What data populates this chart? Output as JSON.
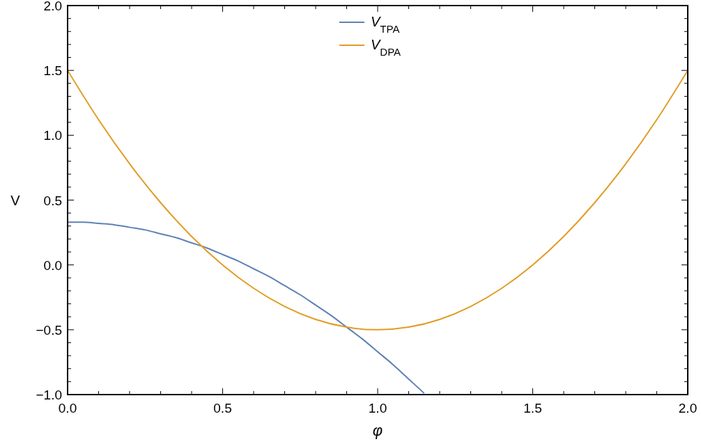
{
  "chart_data": {
    "type": "line",
    "xlabel": "φ",
    "ylabel": "V",
    "xlim": [
      0,
      2
    ],
    "ylim": [
      -1,
      2
    ],
    "xticks": [
      {
        "value": 0,
        "label": "0.0"
      },
      {
        "value": 0.5,
        "label": "0.5"
      },
      {
        "value": 1,
        "label": "1.0"
      },
      {
        "value": 1.5,
        "label": "1.5"
      },
      {
        "value": 2,
        "label": "2.0"
      }
    ],
    "yticks": [
      {
        "value": -1,
        "label": "−1.0"
      },
      {
        "value": -0.5,
        "label": "−0.5"
      },
      {
        "value": 0,
        "label": "0.0"
      },
      {
        "value": 0.5,
        "label": "0.5"
      },
      {
        "value": 1,
        "label": "1.0"
      },
      {
        "value": 1.5,
        "label": "1.5"
      },
      {
        "value": 2,
        "label": "2.0"
      }
    ],
    "grid": false,
    "legend": "top",
    "marker": "none",
    "line_style": "solid",
    "series": [
      {
        "name": "V$_{TPA}$",
        "color": "#5e81b5",
        "x": [
          0,
          0.05,
          0.1,
          0.15,
          0.2,
          0.25,
          0.3,
          0.35,
          0.4,
          0.45,
          0.5,
          0.55,
          0.6,
          0.65,
          0.7,
          0.75,
          0.8,
          0.85,
          0.9,
          0.95,
          1.0,
          1.05,
          1.1,
          1.15
        ],
        "values": [
          0.33,
          0.33,
          0.32,
          0.31,
          0.29,
          0.27,
          0.24,
          0.21,
          0.17,
          0.13,
          0.08,
          0.03,
          -0.03,
          -0.09,
          -0.16,
          -0.23,
          -0.31,
          -0.39,
          -0.48,
          -0.57,
          -0.67,
          -0.77,
          -0.88,
          -0.99
        ]
      },
      {
        "name": "V$_{DPA}$",
        "color": "#e19c24",
        "x": [
          0,
          0.1,
          0.2,
          0.3,
          0.4,
          0.5,
          0.6,
          0.7,
          0.8,
          0.9,
          1.0,
          1.1,
          1.2,
          1.3,
          1.4,
          1.5,
          1.6,
          1.7,
          1.8,
          1.9,
          2.0
        ],
        "values": [
          1.5,
          1.12,
          0.78,
          0.48,
          0.22,
          0,
          -0.18,
          -0.32,
          -0.42,
          -0.48,
          -0.5,
          -0.48,
          -0.42,
          -0.32,
          -0.18,
          0,
          0.22,
          0.48,
          0.78,
          1.12,
          1.5
        ]
      }
    ]
  }
}
